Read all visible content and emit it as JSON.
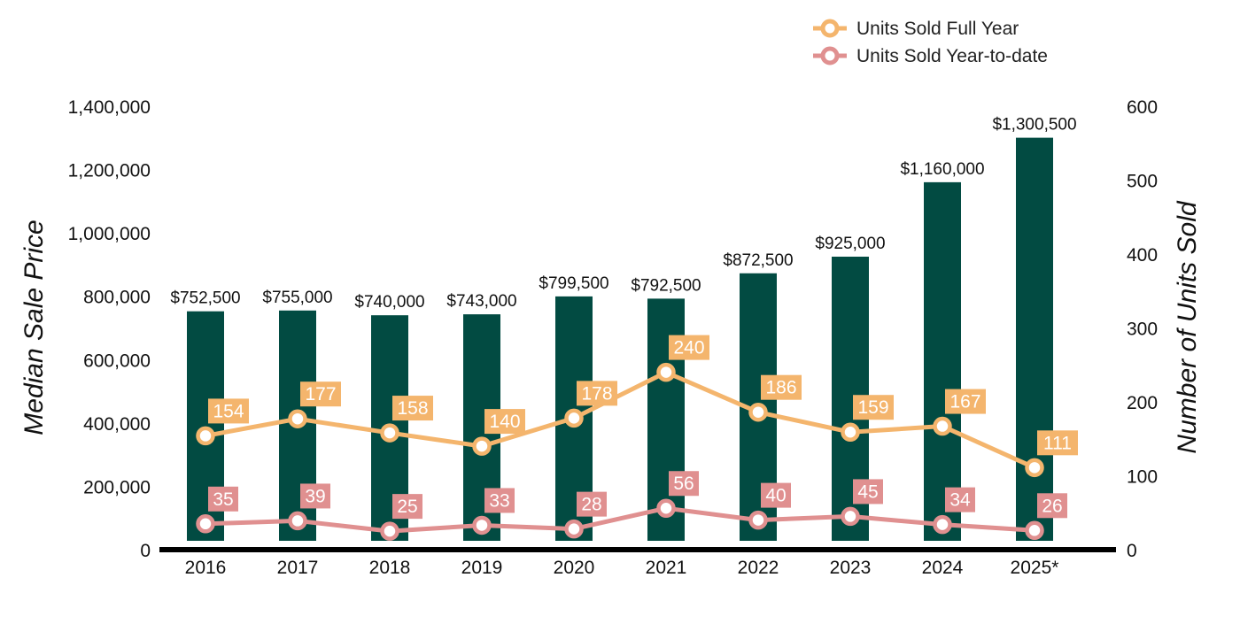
{
  "chart_data": {
    "type": "bar",
    "categories": [
      "2016",
      "2017",
      "2018",
      "2019",
      "2020",
      "2021",
      "2022",
      "2023",
      "2024",
      "2025*"
    ],
    "bar_series": {
      "values": [
        752500,
        755000,
        740000,
        743000,
        799500,
        792500,
        872500,
        925000,
        1160000,
        1300500
      ],
      "labels": [
        "$752,500",
        "$755,000",
        "$740,000",
        "$743,000",
        "$799,500",
        "$792,500",
        "$872,500",
        "$925,000",
        "$1,160,000",
        "$1,300,500"
      ],
      "color": "#024B42"
    },
    "line_series": [
      {
        "name": "Units Sold Full Year",
        "values": [
          154,
          177,
          158,
          140,
          178,
          240,
          186,
          159,
          167,
          111
        ],
        "color": "#F4B56D"
      },
      {
        "name": "Units Sold Year-to-date",
        "values": [
          35,
          39,
          25,
          33,
          28,
          56,
          40,
          45,
          34,
          26
        ],
        "color": "#E09090"
      }
    ],
    "ylabel": "Median Sale Price",
    "y2label": "Number of Units Sold",
    "ylim": [
      0,
      1400000
    ],
    "y2lim": [
      0,
      600
    ],
    "yticks": [
      "0",
      "200,000",
      "400,000",
      "600,000",
      "800,000",
      "1,000,000",
      "1,200,000",
      "1,400,000"
    ],
    "y2ticks": [
      "0",
      "100",
      "200",
      "300",
      "400",
      "500",
      "600"
    ],
    "legend_position": "top-right",
    "grid": false
  }
}
